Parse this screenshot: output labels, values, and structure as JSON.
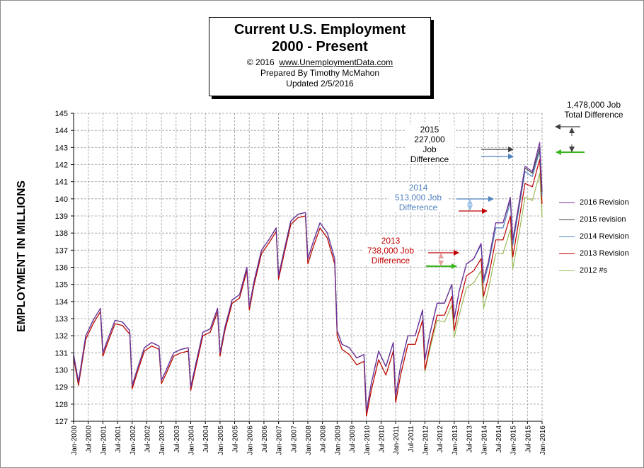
{
  "title": {
    "line1": "Current U.S. Employment",
    "line2": "2000 - Present",
    "copyright": "© 2016",
    "url": "www.UnemploymentData.com",
    "prepared": "Prepared  By Timothy McMahon",
    "updated": "Updated  2/5/2016"
  },
  "annotations": {
    "total": {
      "line1": "1,478,000  Job",
      "line2": "Total Difference"
    },
    "y2015": {
      "line1": "2015",
      "line2": "227,000",
      "line3": "Job",
      "line4": "Difference"
    },
    "y2014": {
      "line1": "2014",
      "line2": "513,000  Job",
      "line3": "Difference"
    },
    "y2013": {
      "line1": "2013",
      "line2": "738,000  Job",
      "line3": "Difference"
    }
  },
  "colors": {
    "r2016": "#7030a0",
    "r2015": "#404040",
    "r2014": "#4f81bd",
    "r2013": "#c00000",
    "r2012": "#9bbb59",
    "green_arrow": "#3cb521",
    "grid": "#9a9a9a",
    "ann2014": "#4f81bd",
    "ann2013": "#c00000"
  },
  "chart_data": {
    "type": "line",
    "title": "Current U.S. Employment 2000 - Present",
    "ylabel": "EMPLOYMENT IN MILLIONS",
    "xlabel": "",
    "ylim": [
      127,
      145
    ],
    "yticks": [
      127,
      128,
      129,
      130,
      131,
      132,
      133,
      134,
      135,
      136,
      137,
      138,
      139,
      140,
      141,
      142,
      143,
      144,
      145
    ],
    "xtick_labels": [
      "Jan-2000",
      "Jul-2000",
      "Jan-2001",
      "Jul-2001",
      "Jan-2002",
      "Jul-2002",
      "Jan-2003",
      "Jul-2003",
      "Jan-2004",
      "Jul-2004",
      "Jan-2005",
      "Jul-2005",
      "Jan-2006",
      "Jul-2006",
      "Jan-2007",
      "Jul-2007",
      "Jan-2008",
      "Jul-2008",
      "Jan-2009",
      "Jul-2009",
      "Jan-2010",
      "Jul-2010",
      "Jan-2011",
      "Jul-2011",
      "Jan-2012",
      "Jul-2012",
      "Jan-2013",
      "Jul-2013",
      "Jan-2014",
      "Jul-2014",
      "Jan-2015",
      "Jul-2015",
      "Jan-2016"
    ],
    "grid": true,
    "legend_position": "right",
    "x_points": [
      "Jan-2000",
      "Mar-2000",
      "Jun-2000",
      "Sep-2000",
      "Dec-2000",
      "Jan-2001",
      "Mar-2001",
      "Jun-2001",
      "Sep-2001",
      "Dec-2001",
      "Jan-2002",
      "Mar-2002",
      "Jun-2002",
      "Sep-2002",
      "Dec-2002",
      "Jan-2003",
      "Mar-2003",
      "Jun-2003",
      "Sep-2003",
      "Dec-2003",
      "Jan-2004",
      "Mar-2004",
      "Jun-2004",
      "Sep-2004",
      "Dec-2004",
      "Jan-2005",
      "Mar-2005",
      "Jun-2005",
      "Sep-2005",
      "Dec-2005",
      "Jan-2006",
      "Mar-2006",
      "Jun-2006",
      "Sep-2006",
      "Dec-2006",
      "Jan-2007",
      "Mar-2007",
      "Jun-2007",
      "Sep-2007",
      "Dec-2007",
      "Jan-2008",
      "Mar-2008",
      "Jun-2008",
      "Sep-2008",
      "Dec-2008",
      "Jan-2009",
      "Mar-2009",
      "Jun-2009",
      "Sep-2009",
      "Dec-2009",
      "Jan-2010",
      "Mar-2010",
      "Jun-2010",
      "Sep-2010",
      "Dec-2010",
      "Jan-2011",
      "Mar-2011",
      "Jun-2011",
      "Sep-2011",
      "Dec-2011",
      "Jan-2012",
      "Mar-2012",
      "Jun-2012",
      "Sep-2012",
      "Dec-2012",
      "Jan-2013",
      "Mar-2013",
      "Jun-2013",
      "Sep-2013",
      "Dec-2013",
      "Jan-2014",
      "Mar-2014",
      "Jun-2014",
      "Sep-2014",
      "Dec-2014",
      "Jan-2015",
      "Mar-2015",
      "Jun-2015",
      "Sep-2015",
      "Dec-2015",
      "Jan-2016"
    ],
    "series": [
      {
        "name": "2016 Revision",
        "values": [
          130.9,
          129.3,
          132.0,
          132.9,
          133.6,
          131.0,
          131.8,
          132.9,
          132.8,
          132.3,
          129.1,
          130.0,
          131.3,
          131.6,
          131.4,
          129.4,
          130.0,
          131.0,
          131.2,
          131.3,
          129.0,
          130.3,
          132.2,
          132.4,
          133.6,
          131.0,
          132.5,
          134.1,
          134.4,
          136.0,
          133.7,
          135.2,
          137.0,
          137.6,
          138.3,
          135.5,
          136.8,
          138.7,
          139.1,
          139.2,
          136.5,
          137.4,
          138.6,
          138.0,
          136.5,
          132.3,
          131.5,
          131.3,
          130.7,
          130.9,
          127.6,
          129.2,
          131.1,
          130.2,
          131.6,
          128.5,
          130.2,
          132.0,
          132.0,
          133.5,
          130.6,
          132.1,
          133.9,
          133.9,
          135.0,
          133.0,
          134.6,
          136.2,
          136.5,
          137.4,
          135.3,
          136.3,
          138.6,
          138.6,
          140.1,
          137.6,
          139.3,
          141.9,
          141.6,
          143.3,
          140.5
        ]
      },
      {
        "name": "2015 revision",
        "values": [
          130.9,
          129.3,
          132.0,
          132.9,
          133.6,
          131.0,
          131.8,
          132.9,
          132.8,
          132.3,
          129.1,
          130.0,
          131.3,
          131.6,
          131.4,
          129.4,
          130.0,
          131.0,
          131.2,
          131.3,
          129.0,
          130.3,
          132.2,
          132.4,
          133.6,
          131.0,
          132.5,
          134.1,
          134.4,
          136.0,
          133.7,
          135.2,
          137.0,
          137.6,
          138.3,
          135.5,
          136.8,
          138.7,
          139.1,
          139.2,
          136.5,
          137.4,
          138.6,
          138.0,
          136.5,
          132.3,
          131.5,
          131.3,
          130.7,
          130.9,
          127.6,
          129.2,
          131.1,
          130.2,
          131.6,
          128.5,
          130.2,
          132.0,
          132.0,
          133.5,
          130.6,
          132.1,
          133.9,
          133.9,
          135.0,
          133.0,
          134.6,
          136.2,
          136.5,
          137.4,
          135.3,
          136.3,
          138.6,
          138.6,
          140.0,
          137.6,
          139.2,
          141.8,
          141.5,
          143.0,
          140.4
        ]
      },
      {
        "name": "2014 Revision",
        "values": [
          130.9,
          129.3,
          132.0,
          132.9,
          133.6,
          131.0,
          131.8,
          132.9,
          132.8,
          132.3,
          129.1,
          130.0,
          131.3,
          131.6,
          131.4,
          129.4,
          130.0,
          131.0,
          131.2,
          131.3,
          129.0,
          130.3,
          132.2,
          132.4,
          133.6,
          131.0,
          132.5,
          134.1,
          134.4,
          136.0,
          133.7,
          135.2,
          137.0,
          137.6,
          138.3,
          135.5,
          136.8,
          138.7,
          139.1,
          139.2,
          136.5,
          137.4,
          138.6,
          138.0,
          136.5,
          132.3,
          131.5,
          131.3,
          130.7,
          130.9,
          127.6,
          129.2,
          131.1,
          130.2,
          131.6,
          128.5,
          130.2,
          132.0,
          132.0,
          133.5,
          130.6,
          132.1,
          133.9,
          133.9,
          135.0,
          133.0,
          134.6,
          136.2,
          136.5,
          137.3,
          135.1,
          136.1,
          138.3,
          138.3,
          139.8,
          137.3,
          139.0,
          141.6,
          141.3,
          142.8,
          140.2
        ]
      },
      {
        "name": "2013 Revision",
        "values": [
          130.7,
          129.1,
          131.8,
          132.7,
          133.4,
          130.8,
          131.6,
          132.7,
          132.6,
          132.1,
          128.9,
          129.8,
          131.1,
          131.4,
          131.2,
          129.2,
          129.8,
          130.8,
          131.0,
          131.1,
          128.8,
          130.1,
          132.0,
          132.2,
          133.4,
          130.8,
          132.3,
          133.9,
          134.2,
          135.8,
          133.5,
          135.0,
          136.8,
          137.4,
          138.1,
          135.3,
          136.6,
          138.5,
          138.9,
          139.0,
          136.2,
          137.1,
          138.3,
          137.7,
          136.2,
          132.0,
          131.2,
          130.9,
          130.3,
          130.5,
          127.3,
          128.8,
          130.6,
          129.7,
          131.1,
          128.1,
          129.7,
          131.5,
          131.5,
          132.9,
          130.0,
          131.4,
          133.2,
          133.2,
          134.3,
          132.3,
          133.8,
          135.5,
          135.8,
          136.5,
          134.3,
          135.4,
          137.6,
          137.6,
          139.0,
          136.6,
          138.3,
          140.9,
          140.7,
          142.3,
          139.7
        ]
      },
      {
        "name": "2012 #s",
        "values": [
          130.7,
          129.1,
          131.8,
          132.7,
          133.4,
          130.8,
          131.6,
          132.7,
          132.6,
          132.1,
          128.9,
          129.8,
          131.1,
          131.4,
          131.2,
          129.2,
          129.8,
          130.8,
          131.0,
          131.1,
          128.8,
          130.1,
          132.0,
          132.2,
          133.4,
          130.8,
          132.3,
          133.9,
          134.2,
          135.8,
          133.5,
          135.0,
          136.8,
          137.4,
          138.1,
          135.3,
          136.6,
          138.5,
          138.9,
          139.0,
          136.2,
          137.1,
          138.3,
          137.7,
          136.2,
          132.0,
          131.2,
          130.9,
          130.3,
          130.5,
          127.3,
          128.8,
          130.6,
          129.7,
          131.1,
          128.1,
          129.7,
          131.5,
          131.5,
          132.9,
          129.9,
          131.2,
          132.9,
          132.8,
          133.8,
          131.9,
          133.2,
          134.8,
          135.1,
          135.8,
          133.6,
          134.7,
          136.8,
          136.8,
          138.2,
          135.9,
          137.5,
          140.1,
          139.9,
          141.5,
          138.9
        ]
      }
    ]
  }
}
